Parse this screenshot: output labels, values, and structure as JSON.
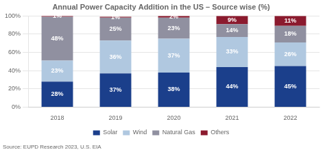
{
  "chart_data": {
    "type": "bar",
    "title": "Annual Power Capacity Addition in the US – Source wise (%)",
    "categories": [
      "2018",
      "2019",
      "2020",
      "2021",
      "2022"
    ],
    "series": [
      {
        "name": "Solar",
        "color": "#1b3f8b",
        "values": [
          28,
          37,
          38,
          44,
          45
        ],
        "value_labels": [
          "28%",
          "37%",
          "38%",
          "44%",
          "45%"
        ]
      },
      {
        "name": "Wind",
        "color": "#b0c8e0",
        "values": [
          23,
          36,
          37,
          33,
          26
        ],
        "value_labels": [
          "23%",
          "36%",
          "37%",
          "33%",
          "26%"
        ]
      },
      {
        "name": "Natural Gas",
        "color": "#9090a0",
        "values": [
          48,
          25,
          23,
          14,
          18
        ],
        "value_labels": [
          "48%",
          "25%",
          "23%",
          "14%",
          "18%"
        ]
      },
      {
        "name": "Others",
        "color": "#8b1a2e",
        "values": [
          1,
          1,
          2,
          9,
          11
        ],
        "value_labels": [
          "1%",
          "1%",
          "2%",
          "9%",
          "11%"
        ]
      }
    ],
    "stacked": true,
    "data_labels": true,
    "ylim": [
      0,
      100
    ],
    "yticks": [
      {
        "value": 0,
        "label": "0%"
      },
      {
        "value": 20,
        "label": "20%"
      },
      {
        "value": 40,
        "label": "40%"
      },
      {
        "value": 60,
        "label": "60%"
      },
      {
        "value": 80,
        "label": "80%"
      },
      {
        "value": 100,
        "label": "100%"
      }
    ],
    "grid": true,
    "legend": "bottom",
    "annotations": [
      "Source: EUPD Research 2023, U.S. EIA"
    ]
  }
}
